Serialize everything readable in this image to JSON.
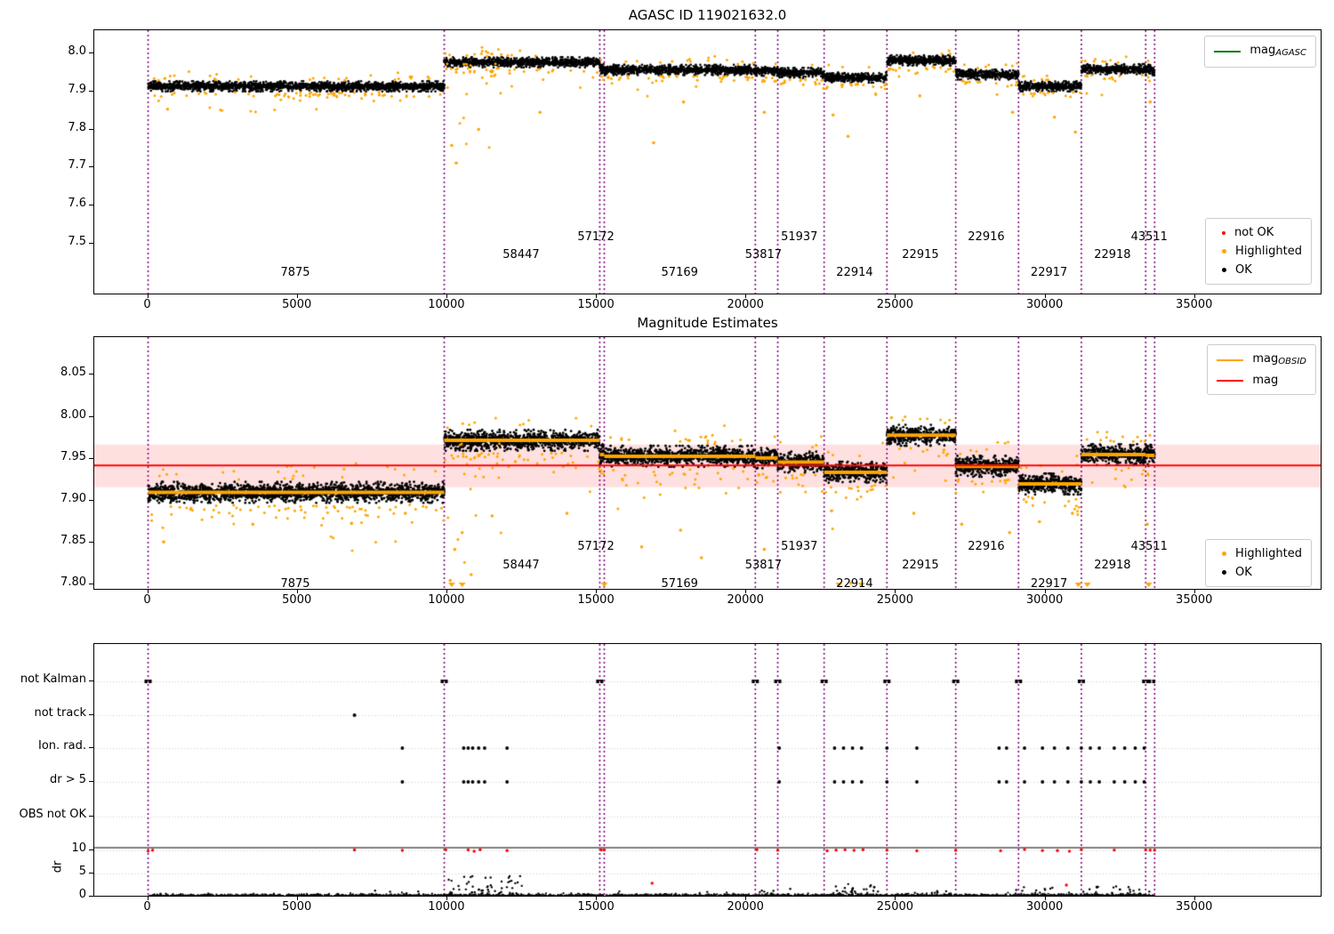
{
  "figure_title": "AGASC ID 119021632.0",
  "colors": {
    "boundary_line": "#800080",
    "highlighted": "#ffa500",
    "not_ok": "#ff0000",
    "ok": "#000000",
    "mag_agasc_line": "#008000",
    "mag_obsid_line": "#ffa500",
    "mag_line": "#ff0000",
    "mag_err_band": "rgba(255,0,0,0.12)",
    "grid": "#c8c8c8"
  },
  "chart_data": [
    {
      "type": "scatter",
      "title": "AGASC ID 119021632.0",
      "xlabel": "",
      "ylabel": "",
      "xlim": [
        -1800,
        39200
      ],
      "ylim": [
        7.37,
        8.06
      ],
      "xticks": [
        0,
        5000,
        10000,
        15000,
        20000,
        25000,
        30000,
        35000
      ],
      "xtick_labels": [
        "0",
        "5000",
        "10000",
        "15000",
        "20000",
        "25000",
        "30000",
        "35000"
      ],
      "yticks": [
        7.5,
        7.6,
        7.7,
        7.8,
        7.9,
        8.0
      ],
      "ytick_labels": [
        "7.5",
        "7.6",
        "7.7",
        "7.8",
        "7.9",
        "8.0"
      ],
      "legend_line": {
        "label": "mag",
        "sub": "AGASC",
        "color": "#008000"
      },
      "legend_points": [
        {
          "label": "not OK",
          "color": "#ff0000"
        },
        {
          "label": "Highlighted",
          "color": "#ffa500"
        },
        {
          "label": "OK",
          "color": "#000000"
        }
      ],
      "boundaries": [
        0,
        9900,
        15100,
        15250,
        20300,
        21050,
        22600,
        24700,
        27000,
        29100,
        31200,
        33350,
        33650
      ],
      "segments": [
        {
          "obsid": "7875",
          "x0": 0,
          "x1": 9900,
          "mag": 7.913,
          "label_x": 4950,
          "tier": "low"
        },
        {
          "obsid": "58447",
          "x0": 9900,
          "x1": 15100,
          "mag": 7.976,
          "label_x": 12500,
          "tier": "mid"
        },
        {
          "obsid": "57172",
          "x0": 15100,
          "x1": 15250,
          "mag": 7.96,
          "label_x": 15000,
          "tier": "high"
        },
        {
          "obsid": "57169",
          "x0": 15250,
          "x1": 20300,
          "mag": 7.956,
          "label_x": 17800,
          "tier": "low"
        },
        {
          "obsid": "53817",
          "x0": 20300,
          "x1": 21050,
          "mag": 7.954,
          "label_x": 20600,
          "tier": "mid"
        },
        {
          "obsid": "51937",
          "x0": 21050,
          "x1": 22600,
          "mag": 7.948,
          "label_x": 21800,
          "tier": "high"
        },
        {
          "obsid": "22914",
          "x0": 22600,
          "x1": 24700,
          "mag": 7.936,
          "label_x": 23650,
          "tier": "low"
        },
        {
          "obsid": "22915",
          "x0": 24700,
          "x1": 27000,
          "mag": 7.981,
          "label_x": 25850,
          "tier": "mid"
        },
        {
          "obsid": "22916",
          "x0": 27000,
          "x1": 29100,
          "mag": 7.944,
          "label_x": 28050,
          "tier": "high"
        },
        {
          "obsid": "22917",
          "x0": 29100,
          "x1": 31200,
          "mag": 7.913,
          "label_x": 30150,
          "tier": "low"
        },
        {
          "obsid": "22918",
          "x0": 31200,
          "x1": 33350,
          "mag": 7.958,
          "label_x": 32270,
          "tier": "mid"
        },
        {
          "obsid": "43511",
          "x0": 33350,
          "x1": 33650,
          "mag": 7.956,
          "label_x": 33500,
          "tier": "high"
        }
      ],
      "outliers_highlighted": [
        [
          650,
          7.853
        ],
        [
          4700,
          7.885
        ],
        [
          10150,
          7.758
        ],
        [
          10300,
          7.712
        ],
        [
          11050,
          7.8
        ],
        [
          13100,
          7.845
        ],
        [
          16900,
          7.765
        ],
        [
          17900,
          7.872
        ],
        [
          20600,
          7.845
        ],
        [
          22900,
          7.838
        ],
        [
          23400,
          7.782
        ],
        [
          25800,
          7.888
        ],
        [
          28900,
          7.845
        ],
        [
          30300,
          7.832
        ],
        [
          31000,
          7.793
        ],
        [
          33500,
          7.872
        ]
      ],
      "settle_cluster": {
        "x0": 9950,
        "x1": 11800,
        "n": 18,
        "top": 7.972,
        "depth": 0.22
      }
    },
    {
      "type": "scatter",
      "title": "Magnitude Estimates",
      "xlabel": "",
      "ylabel": "",
      "xlim": [
        -1800,
        39200
      ],
      "ylim": [
        7.795,
        8.095
      ],
      "xticks": [
        0,
        5000,
        10000,
        15000,
        20000,
        25000,
        30000,
        35000
      ],
      "xtick_labels": [
        "0",
        "5000",
        "10000",
        "15000",
        "20000",
        "25000",
        "30000",
        "35000"
      ],
      "yticks": [
        7.8,
        7.85,
        7.9,
        7.95,
        8.0,
        8.05
      ],
      "ytick_labels": [
        "7.80",
        "7.85",
        "7.90",
        "7.95",
        "8.00",
        "8.05"
      ],
      "legend_lines": [
        {
          "label": "mag",
          "sub": "OBSID",
          "color": "#ffa500"
        },
        {
          "label": "mag",
          "sub": "",
          "color": "#ff0000"
        }
      ],
      "legend_points": [
        {
          "label": "Highlighted",
          "color": "#ffa500"
        },
        {
          "label": "OK",
          "color": "#000000"
        }
      ],
      "mag": 7.942,
      "mag_err_band": [
        7.916,
        7.967
      ],
      "boundaries": [
        0,
        9900,
        15100,
        15250,
        20300,
        21050,
        22600,
        24700,
        27000,
        29100,
        31200,
        33350,
        33650
      ],
      "segments": [
        {
          "obsid": "7875",
          "x0": 0,
          "x1": 9900,
          "mag": 7.91,
          "label_x": 4950,
          "tier": "low"
        },
        {
          "obsid": "58447",
          "x0": 9900,
          "x1": 15100,
          "mag": 7.972,
          "label_x": 12500,
          "tier": "mid"
        },
        {
          "obsid": "57172",
          "x0": 15100,
          "x1": 15250,
          "mag": 7.955,
          "label_x": 15000,
          "tier": "high"
        },
        {
          "obsid": "57169",
          "x0": 15250,
          "x1": 20300,
          "mag": 7.953,
          "label_x": 17800,
          "tier": "low"
        },
        {
          "obsid": "53817",
          "x0": 20300,
          "x1": 21050,
          "mag": 7.951,
          "label_x": 20600,
          "tier": "mid"
        },
        {
          "obsid": "51937",
          "x0": 21050,
          "x1": 22600,
          "mag": 7.946,
          "label_x": 21800,
          "tier": "high"
        },
        {
          "obsid": "22914",
          "x0": 22600,
          "x1": 24700,
          "mag": 7.934,
          "label_x": 23650,
          "tier": "low"
        },
        {
          "obsid": "22915",
          "x0": 24700,
          "x1": 27000,
          "mag": 7.978,
          "label_x": 25850,
          "tier": "mid"
        },
        {
          "obsid": "22916",
          "x0": 27000,
          "x1": 29100,
          "mag": 7.941,
          "label_x": 28050,
          "tier": "high"
        },
        {
          "obsid": "22917",
          "x0": 29100,
          "x1": 31200,
          "mag": 7.92,
          "label_x": 30150,
          "tier": "low"
        },
        {
          "obsid": "22918",
          "x0": 31200,
          "x1": 33350,
          "mag": 7.955,
          "label_x": 32270,
          "tier": "mid"
        },
        {
          "obsid": "43511",
          "x0": 33350,
          "x1": 33650,
          "mag": 7.954,
          "label_x": 33500,
          "tier": "high"
        }
      ],
      "outliers_highlighted": [
        [
          520,
          7.851
        ],
        [
          3500,
          7.872
        ],
        [
          6800,
          7.873
        ],
        [
          8600,
          7.885
        ],
        [
          10100,
          7.805
        ],
        [
          10250,
          7.842
        ],
        [
          10500,
          7.862
        ],
        [
          10800,
          7.812
        ],
        [
          11500,
          7.882
        ],
        [
          14000,
          7.885
        ],
        [
          16500,
          7.845
        ],
        [
          17800,
          7.865
        ],
        [
          18500,
          7.832
        ],
        [
          20600,
          7.842
        ],
        [
          22850,
          7.888
        ],
        [
          23500,
          7.802
        ],
        [
          25600,
          7.885
        ],
        [
          27200,
          7.872
        ],
        [
          28800,
          7.862
        ],
        [
          29800,
          7.875
        ],
        [
          30900,
          7.885
        ],
        [
          33400,
          7.872
        ]
      ],
      "settle_cluster": {
        "x0": 9950,
        "x1": 11800,
        "n": 20,
        "top": 7.968,
        "depth": 0.17
      },
      "clipped_triangles_x": [
        10150,
        10500,
        15250,
        23100,
        23850,
        31100,
        31400,
        33450
      ]
    },
    {
      "type": "scatter",
      "title": "",
      "rows": [
        "not Kalman",
        "not track",
        "Ion. rad.",
        "dr > 5",
        "OBS not OK"
      ],
      "dr_ticks": [
        10,
        5,
        0
      ],
      "dr_tick_labels": [
        "10",
        "5",
        "0"
      ],
      "dr_axis_label": "dr",
      "xlim": [
        -1800,
        39200
      ],
      "xticks": [
        0,
        5000,
        10000,
        15000,
        20000,
        25000,
        30000,
        35000
      ],
      "xtick_labels": [
        "0",
        "5000",
        "10000",
        "15000",
        "20000",
        "25000",
        "30000",
        "35000"
      ],
      "boundaries": [
        0,
        9900,
        15100,
        15250,
        20300,
        21050,
        22600,
        24700,
        27000,
        29100,
        31200,
        33350,
        33650
      ],
      "not_kalman_x": [
        0,
        9900,
        15100,
        20300,
        21050,
        22600,
        24700,
        27000,
        29100,
        31200,
        33350,
        33550
      ],
      "not_track_x": [
        6900
      ],
      "ion_rad_x": [
        8500,
        10550,
        10700,
        10850,
        11050,
        11250,
        12000,
        21100,
        22950,
        23250,
        23550,
        23850,
        24700,
        25700,
        28450,
        28700,
        29300,
        29900,
        30300,
        30750,
        31200,
        31500,
        31800,
        32300,
        32650,
        33000,
        33300
      ],
      "dr_gt5_x": [
        8500,
        10550,
        10700,
        10850,
        11050,
        11250,
        12000,
        21100,
        22950,
        23250,
        23550,
        23850,
        24700,
        25700,
        28450,
        28700,
        29300,
        29900,
        30300,
        30750,
        31200,
        31500,
        31800,
        32300,
        32650,
        33000,
        33300
      ],
      "obs_not_ok_x": [],
      "dr_clip_value": 10,
      "dr_red_x": [
        0,
        150,
        6900,
        8500,
        9950,
        10700,
        10900,
        11100,
        12000,
        15150,
        15250,
        20350,
        21050,
        22700,
        23000,
        23300,
        23600,
        23900,
        24700,
        25700,
        27000,
        28500,
        29300,
        29900,
        30400,
        30800,
        31200,
        32300,
        33350,
        33500,
        33650
      ],
      "dr_red_outliers": [
        [
          16850,
          2.9
        ],
        [
          30700,
          2.5
        ]
      ],
      "dr_spike_clusters": [
        {
          "x0": 6500,
          "x1": 9500,
          "n": 8,
          "max": 1.2
        },
        {
          "x0": 10000,
          "x1": 12600,
          "n": 70,
          "max": 4.2
        },
        {
          "x0": 15300,
          "x1": 19000,
          "n": 10,
          "max": 1.1
        },
        {
          "x0": 20400,
          "x1": 21600,
          "n": 12,
          "max": 1.7
        },
        {
          "x0": 22800,
          "x1": 24400,
          "n": 35,
          "max": 2.6
        },
        {
          "x0": 25000,
          "x1": 26800,
          "n": 10,
          "max": 1.4
        },
        {
          "x0": 29000,
          "x1": 33650,
          "n": 55,
          "max": 2.0
        }
      ]
    }
  ]
}
